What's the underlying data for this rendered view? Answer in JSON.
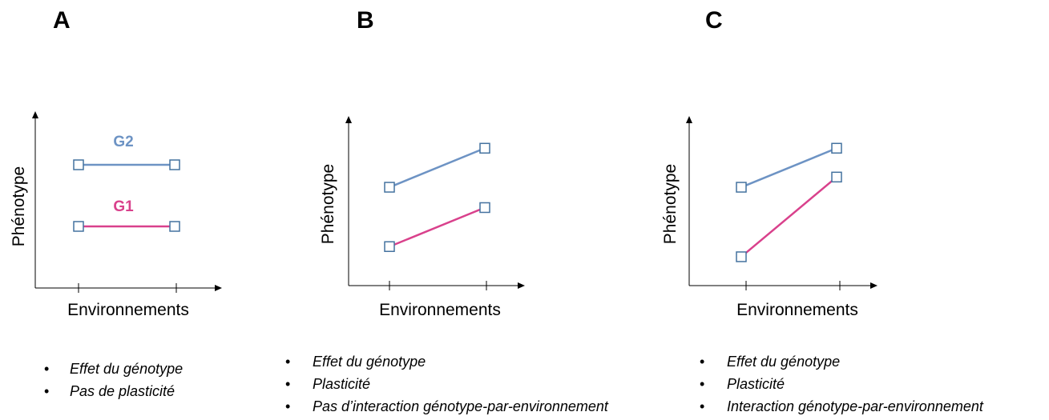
{
  "colors": {
    "g1": "#d9418c",
    "g2": "#6d93c4",
    "marker_edge": "#44729f",
    "axis": "#000000"
  },
  "panels": [
    {
      "letter": "A",
      "ylabel": "Phénotype",
      "xlabel": "Environnements",
      "g1_label": "G1",
      "g2_label": "G2",
      "bullets": [
        "Effet du génotype",
        "Pas de plasticité"
      ]
    },
    {
      "letter": "B",
      "ylabel": "Phénotype",
      "xlabel": "Environnements",
      "bullets": [
        "Effet du génotype",
        "Plasticité",
        "Pas d’interaction génotype-par-environnement"
      ]
    },
    {
      "letter": "C",
      "ylabel": "Phénotype",
      "xlabel": "Environnements",
      "bullets": [
        "Effet du génotype",
        "Plasticité",
        "Interaction génotype-par-environnement"
      ]
    }
  ],
  "chart_data": [
    {
      "type": "line",
      "ylim": [
        0,
        10
      ],
      "series": [
        {
          "name": "G2",
          "values": [
            7,
            7
          ]
        },
        {
          "name": "G1",
          "values": [
            3.5,
            3.5
          ]
        }
      ]
    },
    {
      "type": "line",
      "ylim": [
        0,
        10
      ],
      "series": [
        {
          "values": [
            5.8,
            8.1
          ]
        },
        {
          "values": [
            2.3,
            4.6
          ]
        }
      ]
    },
    {
      "type": "line",
      "ylim": [
        0,
        10
      ],
      "series": [
        {
          "values": [
            5.8,
            8.1
          ]
        },
        {
          "values": [
            1.7,
            6.4
          ]
        }
      ]
    }
  ]
}
